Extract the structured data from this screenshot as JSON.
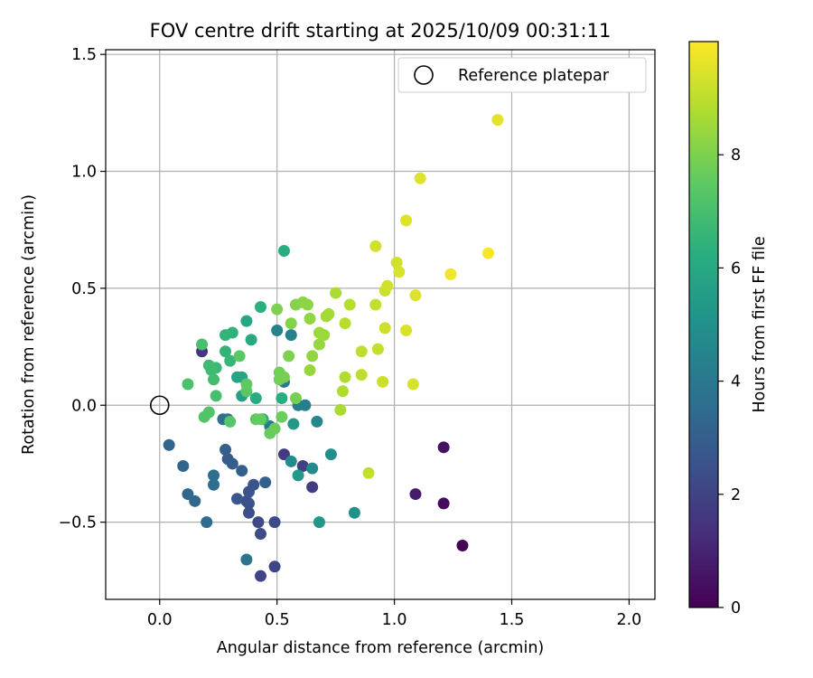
{
  "chart_data": {
    "type": "scatter",
    "title": "FOV centre drift starting at 2025/10/09 00:31:11",
    "xlabel": "Angular distance from reference (arcmin)",
    "ylabel": "Rotation from reference (arcmin)",
    "xlim": [
      -0.23,
      2.11
    ],
    "ylim": [
      -0.83,
      1.52
    ],
    "xticks": [
      0.0,
      0.5,
      1.0,
      1.5,
      2.0
    ],
    "xtick_labels": [
      "0.0",
      "0.5",
      "1.0",
      "1.5",
      "2.0"
    ],
    "yticks": [
      -0.5,
      0.0,
      0.5,
      1.0,
      1.5
    ],
    "ytick_labels": [
      "−0.5",
      "0.0",
      "0.5",
      "1.0",
      "1.5"
    ],
    "grid": true,
    "legend": {
      "position": "top-right",
      "entries": [
        "Reference platepar"
      ]
    },
    "reference_point": {
      "x": 0.0,
      "y": 0.0,
      "label": "Reference platepar"
    },
    "colorbar": {
      "label": "Hours from first FF file",
      "range": [
        0,
        10
      ],
      "ticks": [
        0,
        2,
        4,
        6,
        8
      ],
      "tick_labels": [
        "0",
        "2",
        "4",
        "6",
        "8"
      ],
      "colormap": "viridis"
    },
    "points": [
      {
        "x": 1.29,
        "y": -0.6,
        "h": 0.1
      },
      {
        "x": 1.21,
        "y": -0.42,
        "h": 0.3
      },
      {
        "x": 1.21,
        "y": -0.18,
        "h": 0.5
      },
      {
        "x": 1.09,
        "y": -0.38,
        "h": 0.8
      },
      {
        "x": 0.18,
        "y": 0.23,
        "h": 1.6
      },
      {
        "x": 0.53,
        "y": -0.21,
        "h": 1.7
      },
      {
        "x": 0.65,
        "y": -0.35,
        "h": 1.8
      },
      {
        "x": 0.61,
        "y": -0.26,
        "h": 1.9
      },
      {
        "x": 0.43,
        "y": -0.73,
        "h": 2.0
      },
      {
        "x": 0.49,
        "y": -0.69,
        "h": 2.1
      },
      {
        "x": 0.49,
        "y": -0.5,
        "h": 2.2
      },
      {
        "x": 0.42,
        "y": -0.5,
        "h": 2.2
      },
      {
        "x": 0.43,
        "y": -0.55,
        "h": 2.3
      },
      {
        "x": 0.38,
        "y": -0.46,
        "h": 2.4
      },
      {
        "x": 0.38,
        "y": -0.42,
        "h": 2.4
      },
      {
        "x": 0.37,
        "y": -0.41,
        "h": 2.5
      },
      {
        "x": 0.38,
        "y": -0.37,
        "h": 2.6
      },
      {
        "x": 0.4,
        "y": -0.34,
        "h": 2.6
      },
      {
        "x": 0.33,
        "y": -0.4,
        "h": 2.7
      },
      {
        "x": 0.29,
        "y": -0.23,
        "h": 2.8
      },
      {
        "x": 0.31,
        "y": -0.25,
        "h": 2.9
      },
      {
        "x": 0.35,
        "y": -0.28,
        "h": 3.0
      },
      {
        "x": 0.28,
        "y": -0.19,
        "h": 3.0
      },
      {
        "x": 0.45,
        "y": -0.33,
        "h": 3.1
      },
      {
        "x": 0.04,
        "y": -0.17,
        "h": 3.2
      },
      {
        "x": 0.1,
        "y": -0.26,
        "h": 3.2
      },
      {
        "x": 0.12,
        "y": -0.38,
        "h": 3.3
      },
      {
        "x": 0.15,
        "y": -0.41,
        "h": 3.4
      },
      {
        "x": 0.2,
        "y": -0.5,
        "h": 3.5
      },
      {
        "x": 0.23,
        "y": -0.34,
        "h": 3.6
      },
      {
        "x": 0.23,
        "y": -0.3,
        "h": 3.6
      },
      {
        "x": 0.27,
        "y": -0.06,
        "h": 3.7
      },
      {
        "x": 0.29,
        "y": -0.06,
        "h": 3.8
      },
      {
        "x": 0.37,
        "y": -0.66,
        "h": 3.8
      },
      {
        "x": 0.47,
        "y": -0.09,
        "h": 3.9
      },
      {
        "x": 0.53,
        "y": 0.1,
        "h": 4.0
      },
      {
        "x": 0.59,
        "y": 0.0,
        "h": 4.1
      },
      {
        "x": 0.62,
        "y": 0.0,
        "h": 4.2
      },
      {
        "x": 0.56,
        "y": 0.3,
        "h": 4.3
      },
      {
        "x": 0.5,
        "y": 0.32,
        "h": 4.4
      },
      {
        "x": 0.67,
        "y": -0.07,
        "h": 4.6
      },
      {
        "x": 0.65,
        "y": -0.27,
        "h": 4.7
      },
      {
        "x": 0.56,
        "y": -0.24,
        "h": 4.8
      },
      {
        "x": 0.73,
        "y": -0.21,
        "h": 4.9
      },
      {
        "x": 0.83,
        "y": -0.46,
        "h": 5.0
      },
      {
        "x": 0.68,
        "y": -0.5,
        "h": 5.2
      },
      {
        "x": 0.57,
        "y": -0.08,
        "h": 5.3
      },
      {
        "x": 0.59,
        "y": -0.3,
        "h": 5.4
      },
      {
        "x": 0.35,
        "y": 0.04,
        "h": 5.6
      },
      {
        "x": 0.35,
        "y": 0.12,
        "h": 5.7
      },
      {
        "x": 0.33,
        "y": 0.12,
        "h": 5.8
      },
      {
        "x": 0.37,
        "y": 0.36,
        "h": 5.9
      },
      {
        "x": 0.39,
        "y": 0.28,
        "h": 6.0
      },
      {
        "x": 0.41,
        "y": 0.03,
        "h": 6.1
      },
      {
        "x": 0.44,
        "y": -0.06,
        "h": 6.1
      },
      {
        "x": 0.52,
        "y": 0.03,
        "h": 6.2
      },
      {
        "x": 0.53,
        "y": 0.66,
        "h": 6.2
      },
      {
        "x": 0.43,
        "y": 0.42,
        "h": 6.3
      },
      {
        "x": 0.31,
        "y": 0.31,
        "h": 6.4
      },
      {
        "x": 0.28,
        "y": 0.3,
        "h": 6.5
      },
      {
        "x": 0.28,
        "y": 0.23,
        "h": 6.5
      },
      {
        "x": 0.3,
        "y": 0.19,
        "h": 6.6
      },
      {
        "x": 0.24,
        "y": 0.16,
        "h": 6.7
      },
      {
        "x": 0.21,
        "y": 0.17,
        "h": 6.8
      },
      {
        "x": 0.22,
        "y": 0.15,
        "h": 6.8
      },
      {
        "x": 0.23,
        "y": 0.11,
        "h": 6.9
      },
      {
        "x": 0.24,
        "y": 0.04,
        "h": 7.0
      },
      {
        "x": 0.18,
        "y": 0.26,
        "h": 7.0
      },
      {
        "x": 0.12,
        "y": 0.09,
        "h": 7.1
      },
      {
        "x": 0.19,
        "y": -0.05,
        "h": 7.2
      },
      {
        "x": 0.21,
        "y": -0.03,
        "h": 7.2
      },
      {
        "x": 0.3,
        "y": -0.07,
        "h": 7.3
      },
      {
        "x": 0.34,
        "y": 0.21,
        "h": 7.4
      },
      {
        "x": 0.37,
        "y": 0.06,
        "h": 7.4
      },
      {
        "x": 0.37,
        "y": 0.09,
        "h": 7.5
      },
      {
        "x": 0.41,
        "y": -0.06,
        "h": 7.5
      },
      {
        "x": 0.43,
        "y": -0.06,
        "h": 7.6
      },
      {
        "x": 0.47,
        "y": -0.12,
        "h": 7.6
      },
      {
        "x": 0.49,
        "y": -0.1,
        "h": 7.7
      },
      {
        "x": 0.52,
        "y": -0.05,
        "h": 7.7
      },
      {
        "x": 0.51,
        "y": 0.11,
        "h": 7.8
      },
      {
        "x": 0.51,
        "y": 0.14,
        "h": 7.8
      },
      {
        "x": 0.53,
        "y": 0.12,
        "h": 7.9
      },
      {
        "x": 0.58,
        "y": 0.03,
        "h": 7.9
      },
      {
        "x": 0.55,
        "y": 0.21,
        "h": 8.0
      },
      {
        "x": 0.5,
        "y": 0.41,
        "h": 8.0
      },
      {
        "x": 0.56,
        "y": 0.35,
        "h": 8.1
      },
      {
        "x": 0.58,
        "y": 0.43,
        "h": 8.1
      },
      {
        "x": 0.61,
        "y": 0.44,
        "h": 8.2
      },
      {
        "x": 0.63,
        "y": 0.43,
        "h": 8.2
      },
      {
        "x": 0.64,
        "y": 0.37,
        "h": 8.3
      },
      {
        "x": 0.65,
        "y": 0.21,
        "h": 8.3
      },
      {
        "x": 0.64,
        "y": 0.15,
        "h": 8.4
      },
      {
        "x": 0.68,
        "y": 0.26,
        "h": 8.4
      },
      {
        "x": 0.68,
        "y": 0.31,
        "h": 8.5
      },
      {
        "x": 0.7,
        "y": 0.3,
        "h": 8.5
      },
      {
        "x": 0.71,
        "y": 0.38,
        "h": 8.6
      },
      {
        "x": 0.72,
        "y": 0.39,
        "h": 8.6
      },
      {
        "x": 0.75,
        "y": 0.48,
        "h": 8.7
      },
      {
        "x": 0.77,
        "y": -0.02,
        "h": 8.7
      },
      {
        "x": 0.78,
        "y": 0.06,
        "h": 8.8
      },
      {
        "x": 0.79,
        "y": 0.12,
        "h": 8.8
      },
      {
        "x": 0.79,
        "y": 0.35,
        "h": 8.9
      },
      {
        "x": 0.81,
        "y": 0.43,
        "h": 8.9
      },
      {
        "x": 0.86,
        "y": 0.23,
        "h": 9.0
      },
      {
        "x": 0.86,
        "y": 0.13,
        "h": 9.0
      },
      {
        "x": 0.89,
        "y": -0.29,
        "h": 9.1
      },
      {
        "x": 0.92,
        "y": 0.43,
        "h": 9.1
      },
      {
        "x": 0.93,
        "y": 0.24,
        "h": 9.1
      },
      {
        "x": 0.95,
        "y": 0.1,
        "h": 9.2
      },
      {
        "x": 0.96,
        "y": 0.33,
        "h": 9.2
      },
      {
        "x": 0.96,
        "y": 0.49,
        "h": 9.2
      },
      {
        "x": 0.97,
        "y": 0.51,
        "h": 9.3
      },
      {
        "x": 0.92,
        "y": 0.68,
        "h": 9.3
      },
      {
        "x": 1.01,
        "y": 0.61,
        "h": 9.3
      },
      {
        "x": 1.02,
        "y": 0.57,
        "h": 9.4
      },
      {
        "x": 1.05,
        "y": 0.32,
        "h": 9.4
      },
      {
        "x": 1.08,
        "y": 0.09,
        "h": 9.4
      },
      {
        "x": 1.09,
        "y": 0.47,
        "h": 9.5
      },
      {
        "x": 1.05,
        "y": 0.79,
        "h": 9.5
      },
      {
        "x": 1.11,
        "y": 0.97,
        "h": 9.5
      },
      {
        "x": 1.44,
        "y": 1.22,
        "h": 9.6
      },
      {
        "x": 1.24,
        "y": 0.56,
        "h": 9.8
      },
      {
        "x": 1.4,
        "y": 0.65,
        "h": 9.9
      }
    ]
  }
}
